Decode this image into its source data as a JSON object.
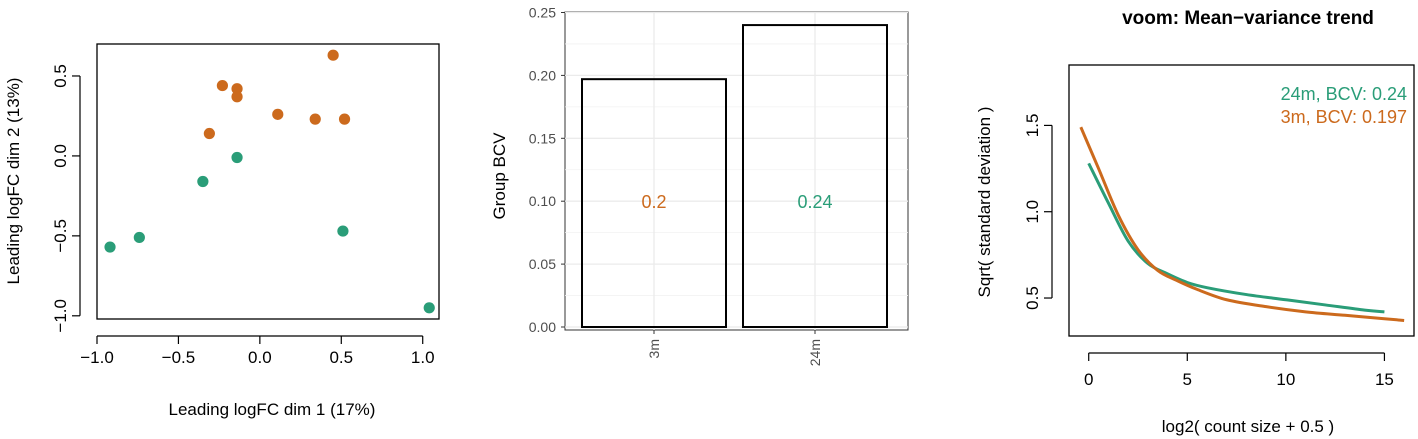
{
  "colors": {
    "green": "#2a9d78",
    "orange": "#cc6a1d",
    "grid": "#ebebeb",
    "frame": "#333333"
  },
  "chart_data": [
    {
      "type": "scatter",
      "xlabel": "Leading logFC dim 1 (17%)",
      "ylabel": "Leading logFC dim 2 (13%)",
      "xlim": [
        -1.0,
        1.1
      ],
      "ylim": [
        -1.02,
        0.7
      ],
      "xticks": [
        "−1.0",
        "−0.5",
        "0.0",
        "0.5",
        "1.0"
      ],
      "xtick_values": [
        -1.0,
        -0.5,
        0.0,
        0.5,
        1.0
      ],
      "yticks": [
        "−1.0",
        "−0.5",
        "0.0",
        "0.5"
      ],
      "ytick_values": [
        -1.0,
        -0.5,
        0.0,
        0.5
      ],
      "series": [
        {
          "color": "#cc6a1d",
          "x": [
            0.45,
            -0.23,
            -0.14,
            -0.14,
            0.11,
            -0.31,
            0.34,
            0.52
          ],
          "y": [
            0.63,
            0.44,
            0.42,
            0.37,
            0.26,
            0.14,
            0.23,
            0.23
          ]
        },
        {
          "color": "#2a9d78",
          "x": [
            -0.14,
            -0.35,
            -0.92,
            -0.74,
            0.51,
            1.04
          ],
          "y": [
            -0.01,
            -0.16,
            -0.57,
            -0.51,
            -0.47,
            -0.95
          ]
        }
      ]
    },
    {
      "type": "bar",
      "ylabel": "Group BCV",
      "categories": [
        "3m",
        "24m"
      ],
      "values": [
        0.197,
        0.24
      ],
      "bar_labels": [
        "0.2",
        "0.24"
      ],
      "bar_label_colors": [
        "#cc6a1d",
        "#2a9d78"
      ],
      "ylim": [
        0,
        0.25
      ],
      "yticks": [
        "0.00",
        "0.05",
        "0.10",
        "0.15",
        "0.20",
        "0.25"
      ],
      "ytick_values": [
        0,
        0.05,
        0.1,
        0.15,
        0.2,
        0.25
      ],
      "grid": true
    },
    {
      "type": "line",
      "title": "voom: Mean−variance trend",
      "xlabel": "log2( count size + 0.5 )",
      "ylabel": "Sqrt( standard deviation )",
      "xlim": [
        -1,
        16.5
      ],
      "ylim": [
        0.28,
        1.85
      ],
      "xticks": [
        "0",
        "5",
        "10",
        "15"
      ],
      "xtick_values": [
        0,
        5,
        10,
        15
      ],
      "yticks": [
        "0.5",
        "1.0",
        "1.5"
      ],
      "ytick_values": [
        0.5,
        1.0,
        1.5
      ],
      "legend": [
        {
          "label": "24m, BCV: 0.24",
          "color": "#2a9d78"
        },
        {
          "label": "3m, BCV: 0.197",
          "color": "#cc6a1d"
        }
      ],
      "series": [
        {
          "color": "#2a9d78",
          "x": [
            0.0,
            1.0,
            2.0,
            3.0,
            4.0,
            5.0,
            6.0,
            8.0,
            10.0,
            12.0,
            14.0,
            15.0
          ],
          "y": [
            1.28,
            1.05,
            0.83,
            0.7,
            0.64,
            0.59,
            0.56,
            0.52,
            0.49,
            0.46,
            0.43,
            0.42
          ]
        },
        {
          "color": "#cc6a1d",
          "x": [
            -0.4,
            0.5,
            1.5,
            2.5,
            3.5,
            4.5,
            5.5,
            7.0,
            9.0,
            11.0,
            13.0,
            15.0,
            16.0
          ],
          "y": [
            1.49,
            1.25,
            0.98,
            0.78,
            0.66,
            0.6,
            0.55,
            0.49,
            0.45,
            0.42,
            0.4,
            0.38,
            0.37
          ]
        }
      ]
    }
  ]
}
